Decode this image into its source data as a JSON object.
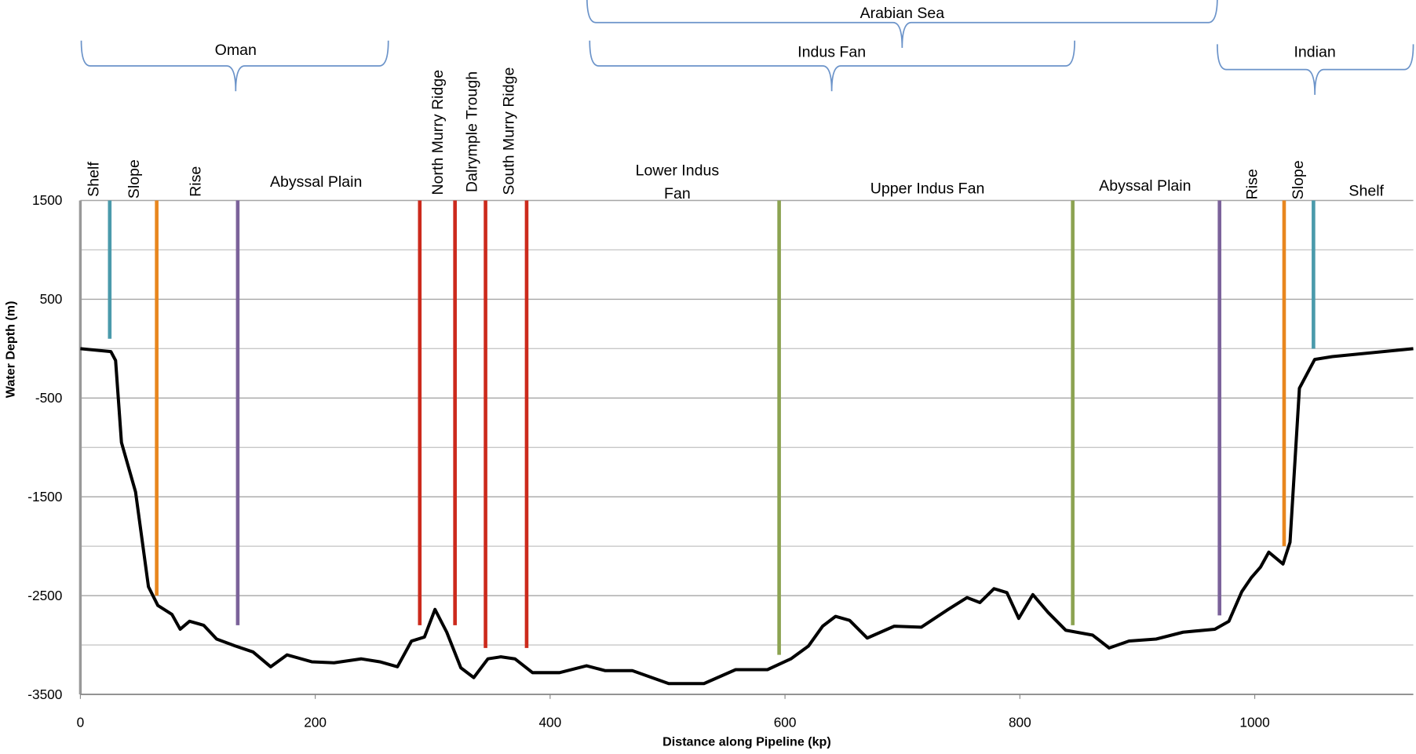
{
  "chart_data": {
    "type": "line",
    "x_label": "Distance along Pipeline (kp)",
    "y_label": "Water Depth (m)",
    "xlim": [
      0,
      1135
    ],
    "ylim": [
      -3500,
      1500
    ],
    "xticks": [
      0,
      200,
      400,
      600,
      800,
      1000
    ],
    "yticks": [
      -3500,
      -2500,
      -1500,
      -500,
      500,
      1500
    ],
    "ygrid_minor": [
      -3000,
      -2000,
      -1000,
      0,
      1000
    ],
    "grid": true,
    "series": [
      {
        "color": "#000000",
        "x": [
          0,
          26,
          30,
          35,
          47,
          58,
          66,
          78,
          85,
          93,
          105,
          116,
          132,
          147,
          162,
          176,
          197,
          216,
          239,
          255,
          270,
          282,
          293,
          302,
          312,
          324,
          335,
          347,
          358,
          370,
          385,
          408,
          431,
          447,
          470,
          501,
          531,
          558,
          585,
          605,
          620,
          632,
          643,
          655,
          670,
          693,
          716,
          739,
          755,
          766,
          778,
          789,
          799,
          811,
          824,
          839,
          862,
          876,
          893,
          916,
          939,
          966,
          978,
          989,
          997,
          1005,
          1012,
          1024,
          1030,
          1038,
          1051,
          1066,
          1135
        ],
        "values": [
          0,
          -30,
          -120,
          -950,
          -1450,
          -2410,
          -2600,
          -2690,
          -2840,
          -2760,
          -2800,
          -2940,
          -3010,
          -3070,
          -3220,
          -3100,
          -3170,
          -3180,
          -3140,
          -3170,
          -3220,
          -2960,
          -2920,
          -2640,
          -2870,
          -3230,
          -3330,
          -3140,
          -3120,
          -3140,
          -3280,
          -3280,
          -3210,
          -3260,
          -3260,
          -3390,
          -3390,
          -3250,
          -3250,
          -3140,
          -3010,
          -2810,
          -2710,
          -2750,
          -2930,
          -2810,
          -2820,
          -2640,
          -2520,
          -2570,
          -2430,
          -2470,
          -2730,
          -2490,
          -2670,
          -2850,
          -2900,
          -3030,
          -2960,
          -2940,
          -2870,
          -2840,
          -2760,
          -2460,
          -2320,
          -2210,
          -2060,
          -2180,
          -1960,
          -400,
          -110,
          -80,
          0
        ]
      }
    ],
    "markers": {
      "x": [
        25,
        65,
        134,
        289,
        319,
        345,
        380,
        595,
        845,
        970,
        1025,
        1050
      ],
      "bottom": [
        100,
        -2500,
        -2800,
        -2800,
        -2800,
        -3030,
        -3030,
        -3100,
        -2800,
        -2700,
        -2000,
        0
      ],
      "colors": [
        "#4a9aab",
        "#e8861e",
        "#7b629a",
        "#cc2a1c",
        "#cc2a1c",
        "#cc2a1c",
        "#cc2a1c",
        "#8ca351",
        "#8ca351",
        "#7b629a",
        "#e8861e",
        "#4a9aab"
      ]
    },
    "zones_vertical": [
      "Shelf",
      "Slope",
      "Rise",
      "North Murry Ridge",
      "Dalrymple Trough",
      "South Murry Ridge",
      "Rise",
      "Slope"
    ],
    "zones_horizontal": [
      "Abyssal Plain",
      [
        "Lower Indus",
        "Fan"
      ],
      "Upper Indus Fan",
      "Abyssal Plain",
      "Shelf"
    ],
    "braces": [
      "Oman",
      "Arabian Sea",
      "Indus Fan",
      "Indian"
    ]
  }
}
